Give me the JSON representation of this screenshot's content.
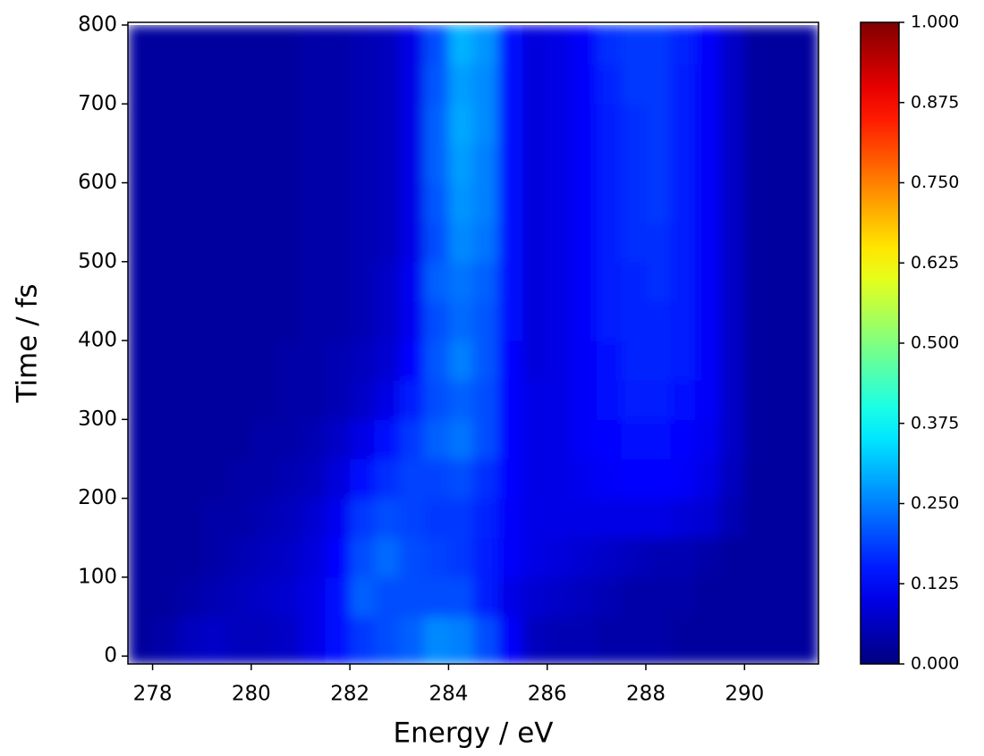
{
  "chart_data": {
    "type": "heatmap",
    "xlabel": "Energy / eV",
    "ylabel": "Time / fs",
    "x_bins": [
      277.5,
      278,
      278.5,
      279,
      279.5,
      280,
      280.5,
      281,
      281.5,
      282,
      282.5,
      283,
      283.5,
      284,
      284.5,
      285,
      285.5,
      286,
      286.5,
      287,
      287.5,
      288,
      288.5,
      289,
      289.5,
      290,
      290.5,
      291,
      291.5
    ],
    "y_bins": [
      -10,
      50,
      100,
      150,
      200,
      250,
      300,
      350,
      400,
      450,
      500,
      550,
      600,
      650,
      700,
      750,
      800
    ],
    "values": [
      [
        0.03,
        0.04,
        0.06,
        0.07,
        0.06,
        0.06,
        0.07,
        0.1,
        0.14,
        0.18,
        0.2,
        0.22,
        0.26,
        0.25,
        0.2,
        0.12,
        0.06,
        0.05,
        0.05,
        0.04,
        0.04,
        0.04,
        0.03,
        0.03,
        0.03,
        0.03,
        0.03,
        0.03
      ],
      [
        0.03,
        0.03,
        0.04,
        0.05,
        0.06,
        0.07,
        0.08,
        0.1,
        0.14,
        0.22,
        0.2,
        0.2,
        0.2,
        0.2,
        0.15,
        0.1,
        0.08,
        0.07,
        0.06,
        0.05,
        0.04,
        0.04,
        0.04,
        0.03,
        0.03,
        0.03,
        0.03,
        0.03
      ],
      [
        0.03,
        0.03,
        0.03,
        0.04,
        0.05,
        0.06,
        0.07,
        0.09,
        0.13,
        0.2,
        0.23,
        0.2,
        0.19,
        0.18,
        0.15,
        0.12,
        0.1,
        0.09,
        0.08,
        0.07,
        0.06,
        0.05,
        0.05,
        0.04,
        0.03,
        0.03,
        0.03,
        0.03
      ],
      [
        0.03,
        0.03,
        0.03,
        0.04,
        0.04,
        0.05,
        0.06,
        0.08,
        0.11,
        0.18,
        0.2,
        0.19,
        0.18,
        0.18,
        0.16,
        0.12,
        0.1,
        0.1,
        0.1,
        0.1,
        0.1,
        0.1,
        0.09,
        0.08,
        0.05,
        0.03,
        0.03,
        0.03
      ],
      [
        0.03,
        0.03,
        0.03,
        0.03,
        0.04,
        0.04,
        0.05,
        0.06,
        0.09,
        0.14,
        0.17,
        0.19,
        0.19,
        0.2,
        0.17,
        0.13,
        0.1,
        0.1,
        0.11,
        0.12,
        0.13,
        0.13,
        0.12,
        0.1,
        0.06,
        0.03,
        0.03,
        0.03
      ],
      [
        0.03,
        0.03,
        0.03,
        0.03,
        0.03,
        0.04,
        0.04,
        0.05,
        0.07,
        0.1,
        0.14,
        0.18,
        0.22,
        0.24,
        0.2,
        0.13,
        0.1,
        0.1,
        0.12,
        0.13,
        0.14,
        0.14,
        0.13,
        0.11,
        0.07,
        0.03,
        0.03,
        0.03
      ],
      [
        0.03,
        0.03,
        0.03,
        0.03,
        0.03,
        0.03,
        0.04,
        0.04,
        0.05,
        0.07,
        0.1,
        0.15,
        0.2,
        0.22,
        0.2,
        0.13,
        0.1,
        0.1,
        0.12,
        0.14,
        0.15,
        0.15,
        0.14,
        0.12,
        0.07,
        0.03,
        0.03,
        0.03
      ],
      [
        0.03,
        0.03,
        0.03,
        0.03,
        0.03,
        0.03,
        0.04,
        0.04,
        0.05,
        0.06,
        0.08,
        0.13,
        0.21,
        0.25,
        0.21,
        0.13,
        0.09,
        0.1,
        0.12,
        0.14,
        0.16,
        0.16,
        0.15,
        0.12,
        0.07,
        0.03,
        0.03,
        0.03
      ],
      [
        0.03,
        0.03,
        0.03,
        0.03,
        0.03,
        0.03,
        0.03,
        0.04,
        0.04,
        0.05,
        0.07,
        0.11,
        0.2,
        0.23,
        0.21,
        0.14,
        0.09,
        0.1,
        0.12,
        0.15,
        0.16,
        0.16,
        0.15,
        0.12,
        0.07,
        0.03,
        0.03,
        0.03
      ],
      [
        0.03,
        0.03,
        0.03,
        0.03,
        0.03,
        0.03,
        0.03,
        0.04,
        0.04,
        0.05,
        0.07,
        0.11,
        0.22,
        0.24,
        0.22,
        0.14,
        0.09,
        0.1,
        0.12,
        0.15,
        0.16,
        0.17,
        0.15,
        0.12,
        0.07,
        0.03,
        0.03,
        0.03
      ],
      [
        0.03,
        0.03,
        0.03,
        0.03,
        0.03,
        0.03,
        0.03,
        0.04,
        0.04,
        0.05,
        0.06,
        0.1,
        0.2,
        0.26,
        0.24,
        0.14,
        0.09,
        0.1,
        0.12,
        0.15,
        0.17,
        0.17,
        0.15,
        0.12,
        0.07,
        0.03,
        0.03,
        0.03
      ],
      [
        0.03,
        0.03,
        0.03,
        0.03,
        0.03,
        0.03,
        0.03,
        0.04,
        0.04,
        0.05,
        0.06,
        0.1,
        0.21,
        0.27,
        0.25,
        0.14,
        0.09,
        0.1,
        0.12,
        0.15,
        0.17,
        0.18,
        0.15,
        0.12,
        0.07,
        0.03,
        0.03,
        0.03
      ],
      [
        0.03,
        0.03,
        0.03,
        0.03,
        0.03,
        0.03,
        0.03,
        0.04,
        0.04,
        0.05,
        0.06,
        0.1,
        0.22,
        0.28,
        0.25,
        0.14,
        0.09,
        0.1,
        0.12,
        0.15,
        0.17,
        0.18,
        0.15,
        0.12,
        0.07,
        0.03,
        0.03,
        0.03
      ],
      [
        0.03,
        0.03,
        0.03,
        0.03,
        0.03,
        0.03,
        0.03,
        0.04,
        0.04,
        0.05,
        0.06,
        0.1,
        0.22,
        0.29,
        0.26,
        0.14,
        0.09,
        0.1,
        0.12,
        0.15,
        0.17,
        0.18,
        0.15,
        0.12,
        0.07,
        0.03,
        0.03,
        0.03
      ],
      [
        0.03,
        0.03,
        0.03,
        0.03,
        0.03,
        0.03,
        0.03,
        0.04,
        0.04,
        0.05,
        0.06,
        0.1,
        0.21,
        0.28,
        0.26,
        0.14,
        0.09,
        0.1,
        0.12,
        0.16,
        0.18,
        0.18,
        0.15,
        0.12,
        0.07,
        0.03,
        0.03,
        0.03
      ],
      [
        0.03,
        0.03,
        0.03,
        0.03,
        0.03,
        0.03,
        0.03,
        0.04,
        0.04,
        0.05,
        0.06,
        0.1,
        0.2,
        0.3,
        0.27,
        0.14,
        0.09,
        0.1,
        0.12,
        0.17,
        0.18,
        0.18,
        0.16,
        0.12,
        0.07,
        0.03,
        0.03,
        0.03
      ]
    ],
    "xlim": [
      277.5,
      291.5
    ],
    "ylim": [
      -10,
      800
    ],
    "xticks": [
      278,
      280,
      282,
      284,
      286,
      288,
      290
    ],
    "yticks": [
      0,
      100,
      200,
      300,
      400,
      500,
      600,
      700,
      800
    ],
    "colorbar": {
      "colormap": "jet",
      "lim": [
        0,
        1
      ],
      "ticks": [
        {
          "value": 0,
          "label": "0.000"
        },
        0.125,
        {
          "value": 0.25,
          "label": "0.250"
        },
        0.375,
        {
          "value": 0.5,
          "label": "0.500"
        },
        0.625,
        {
          "value": 0.75,
          "label": "0.750"
        },
        0.875,
        {
          "value": 1,
          "label": "1.000"
        }
      ]
    }
  }
}
